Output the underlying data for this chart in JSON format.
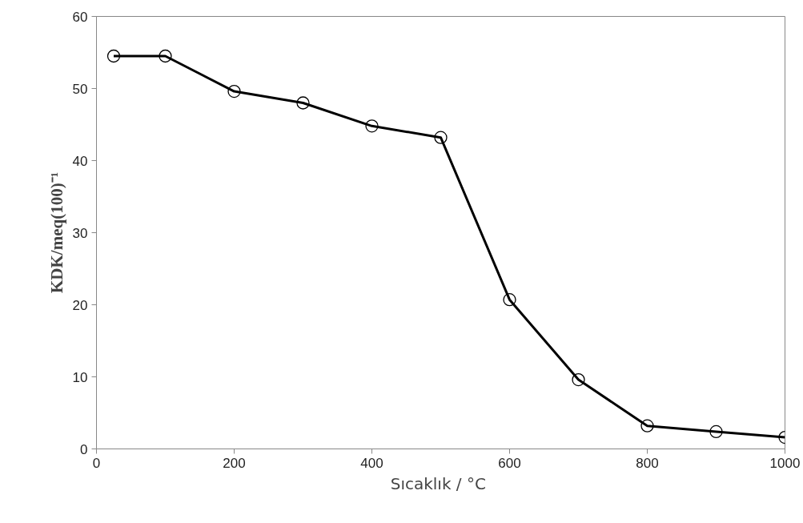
{
  "chart_data": {
    "type": "line",
    "xlabel": "Sıcaklık  / °C",
    "ylabel": "KDK/meq(100)⁻¹",
    "x": [
      25,
      100,
      200,
      300,
      400,
      500,
      600,
      700,
      800,
      900,
      1000
    ],
    "series": [
      {
        "color": "#000000",
        "values": [
          54.5,
          54.5,
          49.6,
          48.0,
          44.8,
          43.2,
          20.7,
          9.6,
          3.2,
          2.4,
          1.6
        ]
      }
    ],
    "xlim": [
      0,
      1000
    ],
    "ylim": [
      0,
      60
    ],
    "xticks": [
      0,
      200,
      400,
      600,
      800,
      1000
    ],
    "yticks": [
      0,
      10,
      20,
      30,
      40,
      50,
      60
    ],
    "grid": false,
    "marker": "circle",
    "line_style": "solid"
  }
}
